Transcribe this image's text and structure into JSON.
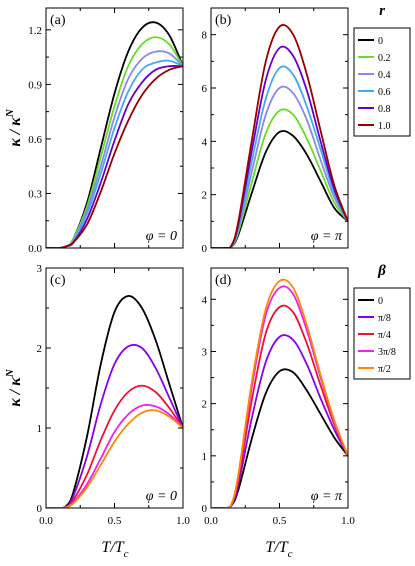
{
  "figure": {
    "y_axis_label": {
      "main": "κ / κ",
      "sup": "N"
    },
    "x_axis_label": {
      "main": "T/T",
      "sub": "c"
    }
  },
  "chart_data": [
    {
      "id": "a",
      "type": "line",
      "panel_label": "(a)",
      "annotation": "φ = 0",
      "legend_title": "r",
      "xlim": [
        0.0,
        1.0
      ],
      "ylim": [
        0.0,
        1.32
      ],
      "x_ticks": [
        0.0,
        0.5,
        1.0
      ],
      "x_tick_labels": [
        "",
        "",
        ""
      ],
      "y_ticks": [
        0.0,
        0.3,
        0.6,
        0.9,
        1.2
      ],
      "y_tick_labels": [
        "0.0",
        "0.3",
        "0.6",
        "0.9",
        "1.2"
      ],
      "x": [
        0,
        0.1,
        0.15,
        0.2,
        0.3,
        0.4,
        0.5,
        0.6,
        0.7,
        0.8,
        0.9,
        1.0
      ],
      "series": [
        {
          "name": "0",
          "color": "#000000",
          "values": [
            0,
            0,
            0.01,
            0.05,
            0.25,
            0.55,
            0.85,
            1.08,
            1.21,
            1.24,
            1.17,
            1.0
          ]
        },
        {
          "name": "0.2",
          "color": "#66dd22",
          "values": [
            0,
            0,
            0.01,
            0.05,
            0.23,
            0.5,
            0.78,
            1.0,
            1.12,
            1.16,
            1.12,
            1.0
          ]
        },
        {
          "name": "0.4",
          "color": "#8888ee",
          "values": [
            0,
            0,
            0.01,
            0.04,
            0.21,
            0.45,
            0.72,
            0.93,
            1.04,
            1.08,
            1.07,
            1.0
          ]
        },
        {
          "name": "0.6",
          "color": "#44aaee",
          "values": [
            0,
            0,
            0.01,
            0.04,
            0.19,
            0.41,
            0.66,
            0.86,
            0.98,
            1.02,
            1.03,
            1.0
          ]
        },
        {
          "name": "0.8",
          "color": "#6600cc",
          "values": [
            0,
            0,
            0.01,
            0.03,
            0.16,
            0.36,
            0.59,
            0.79,
            0.91,
            0.98,
            1.0,
            1.0
          ]
        },
        {
          "name": "1.0",
          "color": "#990000",
          "values": [
            0,
            0,
            0.01,
            0.03,
            0.13,
            0.31,
            0.52,
            0.7,
            0.84,
            0.93,
            0.98,
            1.0
          ]
        }
      ]
    },
    {
      "id": "b",
      "type": "line",
      "panel_label": "(b)",
      "annotation": "φ = π",
      "xlim": [
        0.0,
        1.0
      ],
      "ylim": [
        0.0,
        9.0
      ],
      "x_ticks": [
        0.0,
        0.5,
        1.0
      ],
      "x_tick_labels": [
        "",
        "",
        ""
      ],
      "y_ticks": [
        0,
        2,
        4,
        6,
        8
      ],
      "y_tick_labels": [
        "0",
        "2",
        "4",
        "6",
        "8"
      ],
      "x": [
        0,
        0.1,
        0.15,
        0.2,
        0.3,
        0.4,
        0.5,
        0.6,
        0.7,
        0.8,
        0.9,
        1.0
      ],
      "series": [
        {
          "name": "0",
          "color": "#000000",
          "values": [
            0,
            0,
            0.05,
            0.5,
            2.1,
            3.6,
            4.35,
            4.2,
            3.5,
            2.5,
            1.5,
            1.0
          ]
        },
        {
          "name": "0.2",
          "color": "#66dd22",
          "values": [
            0,
            0,
            0.06,
            0.6,
            2.5,
            4.3,
            5.15,
            5.0,
            4.1,
            2.9,
            1.7,
            1.0
          ]
        },
        {
          "name": "0.4",
          "color": "#8888ee",
          "values": [
            0,
            0,
            0.07,
            0.7,
            2.9,
            5.0,
            6.0,
            5.8,
            4.8,
            3.3,
            1.9,
            1.0
          ]
        },
        {
          "name": "0.6",
          "color": "#44aaee",
          "values": [
            0,
            0,
            0.08,
            0.8,
            3.3,
            5.6,
            6.75,
            6.5,
            5.3,
            3.7,
            2.05,
            1.0
          ]
        },
        {
          "name": "0.8",
          "color": "#6600cc",
          "values": [
            0,
            0,
            0.09,
            0.9,
            3.7,
            6.3,
            7.5,
            7.2,
            5.9,
            4.0,
            2.2,
            1.0
          ]
        },
        {
          "name": "1.0",
          "color": "#990000",
          "values": [
            0,
            0,
            0.1,
            1.0,
            4.1,
            7.0,
            8.3,
            8.0,
            6.5,
            4.4,
            2.35,
            1.0
          ]
        }
      ]
    },
    {
      "id": "c",
      "type": "line",
      "panel_label": "(c)",
      "annotation": "φ = 0",
      "legend_title": "β",
      "xlim": [
        0.0,
        1.0
      ],
      "ylim": [
        0.0,
        3.0
      ],
      "x_ticks": [
        0.0,
        0.5,
        1.0
      ],
      "x_tick_labels": [
        "0.0",
        "0.5",
        "1.0"
      ],
      "y_ticks": [
        0,
        1,
        2,
        3
      ],
      "y_tick_labels": [
        "0",
        "1",
        "2",
        "3"
      ],
      "x": [
        0,
        0.1,
        0.15,
        0.2,
        0.3,
        0.4,
        0.5,
        0.6,
        0.7,
        0.8,
        0.9,
        1.0
      ],
      "series": [
        {
          "name": "0",
          "color": "#000000",
          "values": [
            0,
            0,
            0.03,
            0.2,
            0.9,
            1.8,
            2.45,
            2.65,
            2.5,
            2.1,
            1.55,
            1.0
          ]
        },
        {
          "name": "π/8",
          "color": "#8800ee",
          "values": [
            0,
            0,
            0.02,
            0.15,
            0.65,
            1.3,
            1.8,
            2.02,
            2.0,
            1.75,
            1.38,
            1.0
          ]
        },
        {
          "name": "π/4",
          "color": "#ee1133",
          "values": [
            0,
            0,
            0.01,
            0.1,
            0.42,
            0.85,
            1.22,
            1.45,
            1.53,
            1.45,
            1.25,
            1.0
          ]
        },
        {
          "name": "3π/8",
          "color": "#ee22ee",
          "values": [
            0,
            0,
            0.01,
            0.07,
            0.3,
            0.62,
            0.95,
            1.17,
            1.28,
            1.27,
            1.17,
            1.0
          ]
        },
        {
          "name": "π/2",
          "color": "#ff8800",
          "values": [
            0,
            0,
            0.01,
            0.06,
            0.26,
            0.54,
            0.83,
            1.05,
            1.19,
            1.22,
            1.14,
            1.0
          ]
        }
      ]
    },
    {
      "id": "d",
      "type": "line",
      "panel_label": "(d)",
      "annotation": "φ = π",
      "xlim": [
        0.0,
        1.0
      ],
      "ylim": [
        0.0,
        4.6
      ],
      "x_ticks": [
        0.0,
        0.5,
        1.0
      ],
      "x_tick_labels": [
        "0.0",
        "0.5",
        "1.0"
      ],
      "y_ticks": [
        0,
        1,
        2,
        3,
        4
      ],
      "y_tick_labels": [
        "0",
        "1",
        "2",
        "3",
        "4"
      ],
      "x": [
        0,
        0.1,
        0.15,
        0.2,
        0.3,
        0.4,
        0.5,
        0.6,
        0.7,
        0.8,
        0.9,
        1.0
      ],
      "series": [
        {
          "name": "0",
          "color": "#000000",
          "values": [
            0,
            0,
            0.05,
            0.35,
            1.35,
            2.2,
            2.62,
            2.6,
            2.25,
            1.8,
            1.35,
            1.0
          ]
        },
        {
          "name": "π/8",
          "color": "#8800ee",
          "values": [
            0,
            0,
            0.06,
            0.45,
            1.75,
            2.8,
            3.28,
            3.22,
            2.75,
            2.1,
            1.5,
            1.0
          ]
        },
        {
          "name": "π/4",
          "color": "#ee1133",
          "values": [
            0,
            0,
            0.07,
            0.55,
            2.1,
            3.35,
            3.85,
            3.75,
            3.15,
            2.35,
            1.6,
            1.0
          ]
        },
        {
          "name": "3π/8",
          "color": "#ee22ee",
          "values": [
            0,
            0,
            0.08,
            0.62,
            2.35,
            3.7,
            4.22,
            4.1,
            3.4,
            2.5,
            1.65,
            1.0
          ]
        },
        {
          "name": "π/2",
          "color": "#ff8800",
          "values": [
            0,
            0,
            0.08,
            0.65,
            2.45,
            3.82,
            4.35,
            4.22,
            3.5,
            2.55,
            1.68,
            1.0
          ]
        }
      ]
    }
  ]
}
